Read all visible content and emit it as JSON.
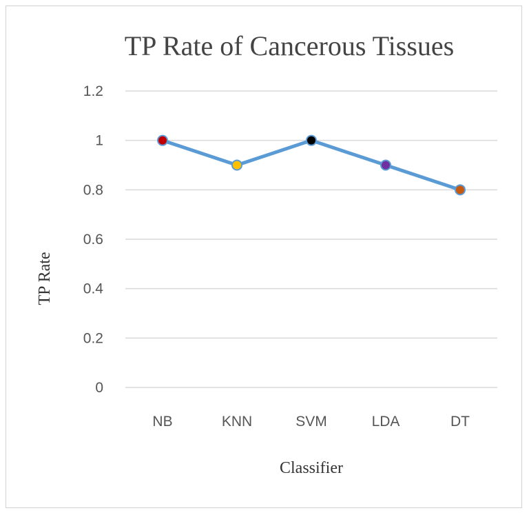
{
  "chart_data": {
    "type": "line",
    "title": "TP Rate of Cancerous Tissues",
    "xlabel": "Classifier",
    "ylabel": "TP Rate",
    "categories": [
      "NB",
      "KNN",
      "SVM",
      "LDA",
      "DT"
    ],
    "series": [
      {
        "values": [
          1.0,
          0.9,
          1.0,
          0.9,
          0.8
        ],
        "line_color": "#5b9bd5",
        "marker_colors": [
          "#c00000",
          "#ffc000",
          "#000000",
          "#7030a0",
          "#c55a11"
        ]
      }
    ],
    "ylim": [
      0,
      1.2
    ],
    "yticks": [
      "0",
      "0.2",
      "0.4",
      "0.6",
      "0.8",
      "1",
      "1.2"
    ],
    "grid": true,
    "legend": "none"
  }
}
